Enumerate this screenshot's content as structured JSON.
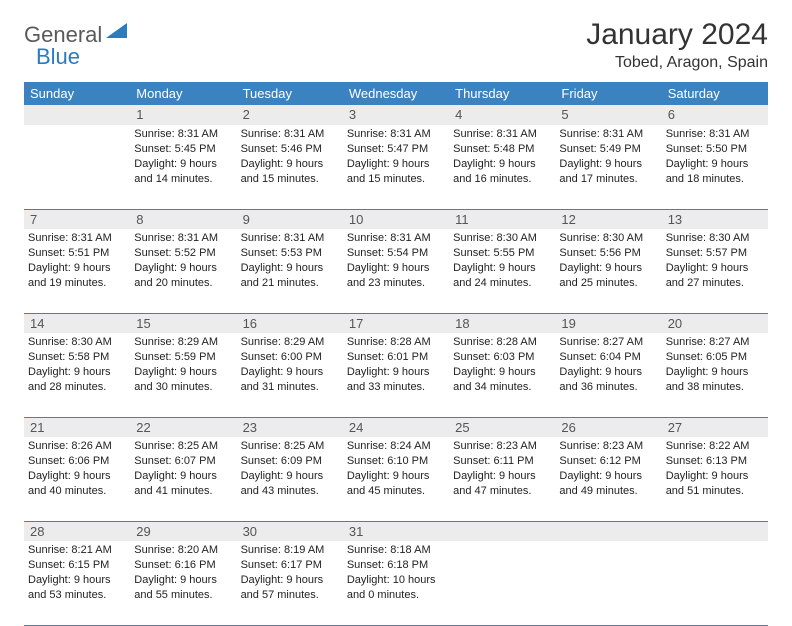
{
  "logo": {
    "text1": "General",
    "text2": "Blue"
  },
  "title": "January 2024",
  "location": "Tobed, Aragon, Spain",
  "colors": {
    "header_bg": "#3b83c0",
    "header_fg": "#ffffff",
    "daynum_bg": "#ececec",
    "border": "#3b83c0",
    "logo_gray": "#5a5a5a",
    "logo_blue": "#2b7bbf"
  },
  "weekdays": [
    "Sunday",
    "Monday",
    "Tuesday",
    "Wednesday",
    "Thursday",
    "Friday",
    "Saturday"
  ],
  "grid": [
    [
      null,
      {
        "n": "1",
        "sr": "8:31 AM",
        "ss": "5:45 PM",
        "dl": "9 hours and 14 minutes."
      },
      {
        "n": "2",
        "sr": "8:31 AM",
        "ss": "5:46 PM",
        "dl": "9 hours and 15 minutes."
      },
      {
        "n": "3",
        "sr": "8:31 AM",
        "ss": "5:47 PM",
        "dl": "9 hours and 15 minutes."
      },
      {
        "n": "4",
        "sr": "8:31 AM",
        "ss": "5:48 PM",
        "dl": "9 hours and 16 minutes."
      },
      {
        "n": "5",
        "sr": "8:31 AM",
        "ss": "5:49 PM",
        "dl": "9 hours and 17 minutes."
      },
      {
        "n": "6",
        "sr": "8:31 AM",
        "ss": "5:50 PM",
        "dl": "9 hours and 18 minutes."
      }
    ],
    [
      {
        "n": "7",
        "sr": "8:31 AM",
        "ss": "5:51 PM",
        "dl": "9 hours and 19 minutes."
      },
      {
        "n": "8",
        "sr": "8:31 AM",
        "ss": "5:52 PM",
        "dl": "9 hours and 20 minutes."
      },
      {
        "n": "9",
        "sr": "8:31 AM",
        "ss": "5:53 PM",
        "dl": "9 hours and 21 minutes."
      },
      {
        "n": "10",
        "sr": "8:31 AM",
        "ss": "5:54 PM",
        "dl": "9 hours and 23 minutes."
      },
      {
        "n": "11",
        "sr": "8:30 AM",
        "ss": "5:55 PM",
        "dl": "9 hours and 24 minutes."
      },
      {
        "n": "12",
        "sr": "8:30 AM",
        "ss": "5:56 PM",
        "dl": "9 hours and 25 minutes."
      },
      {
        "n": "13",
        "sr": "8:30 AM",
        "ss": "5:57 PM",
        "dl": "9 hours and 27 minutes."
      }
    ],
    [
      {
        "n": "14",
        "sr": "8:30 AM",
        "ss": "5:58 PM",
        "dl": "9 hours and 28 minutes."
      },
      {
        "n": "15",
        "sr": "8:29 AM",
        "ss": "5:59 PM",
        "dl": "9 hours and 30 minutes."
      },
      {
        "n": "16",
        "sr": "8:29 AM",
        "ss": "6:00 PM",
        "dl": "9 hours and 31 minutes."
      },
      {
        "n": "17",
        "sr": "8:28 AM",
        "ss": "6:01 PM",
        "dl": "9 hours and 33 minutes."
      },
      {
        "n": "18",
        "sr": "8:28 AM",
        "ss": "6:03 PM",
        "dl": "9 hours and 34 minutes."
      },
      {
        "n": "19",
        "sr": "8:27 AM",
        "ss": "6:04 PM",
        "dl": "9 hours and 36 minutes."
      },
      {
        "n": "20",
        "sr": "8:27 AM",
        "ss": "6:05 PM",
        "dl": "9 hours and 38 minutes."
      }
    ],
    [
      {
        "n": "21",
        "sr": "8:26 AM",
        "ss": "6:06 PM",
        "dl": "9 hours and 40 minutes."
      },
      {
        "n": "22",
        "sr": "8:25 AM",
        "ss": "6:07 PM",
        "dl": "9 hours and 41 minutes."
      },
      {
        "n": "23",
        "sr": "8:25 AM",
        "ss": "6:09 PM",
        "dl": "9 hours and 43 minutes."
      },
      {
        "n": "24",
        "sr": "8:24 AM",
        "ss": "6:10 PM",
        "dl": "9 hours and 45 minutes."
      },
      {
        "n": "25",
        "sr": "8:23 AM",
        "ss": "6:11 PM",
        "dl": "9 hours and 47 minutes."
      },
      {
        "n": "26",
        "sr": "8:23 AM",
        "ss": "6:12 PM",
        "dl": "9 hours and 49 minutes."
      },
      {
        "n": "27",
        "sr": "8:22 AM",
        "ss": "6:13 PM",
        "dl": "9 hours and 51 minutes."
      }
    ],
    [
      {
        "n": "28",
        "sr": "8:21 AM",
        "ss": "6:15 PM",
        "dl": "9 hours and 53 minutes."
      },
      {
        "n": "29",
        "sr": "8:20 AM",
        "ss": "6:16 PM",
        "dl": "9 hours and 55 minutes."
      },
      {
        "n": "30",
        "sr": "8:19 AM",
        "ss": "6:17 PM",
        "dl": "9 hours and 57 minutes."
      },
      {
        "n": "31",
        "sr": "8:18 AM",
        "ss": "6:18 PM",
        "dl": "10 hours and 0 minutes."
      },
      null,
      null,
      null
    ]
  ],
  "labels": {
    "sunrise": "Sunrise:",
    "sunset": "Sunset:",
    "daylight": "Daylight:"
  }
}
